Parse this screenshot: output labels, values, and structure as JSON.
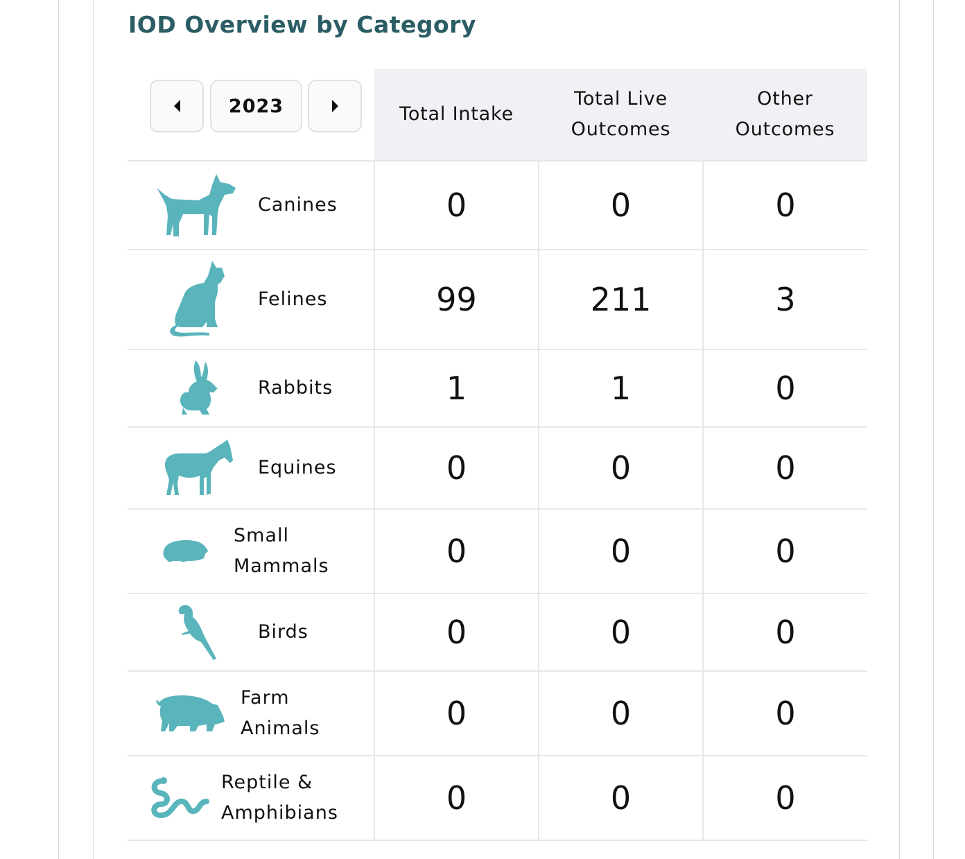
{
  "title": "IOD Overview by Category",
  "year_selector": {
    "year": "2023",
    "prev_icon": "caret-left-icon",
    "next_icon": "caret-right-icon"
  },
  "columns": [
    "Total Intake",
    "Total Live Outcomes",
    "Other Outcomes"
  ],
  "icon_color": "#5ab4bb",
  "rows": [
    {
      "label": "Canines",
      "icon": "dog-icon",
      "values": [
        "0",
        "0",
        "0"
      ]
    },
    {
      "label": "Felines",
      "icon": "cat-icon",
      "values": [
        "99",
        "211",
        "3"
      ]
    },
    {
      "label": "Rabbits",
      "icon": "rabbit-icon",
      "values": [
        "1",
        "1",
        "0"
      ]
    },
    {
      "label": "Equines",
      "icon": "horse-icon",
      "values": [
        "0",
        "0",
        "0"
      ]
    },
    {
      "label": "Small Mammals",
      "icon": "guinea-pig-icon",
      "values": [
        "0",
        "0",
        "0"
      ]
    },
    {
      "label": "Birds",
      "icon": "parrot-icon",
      "values": [
        "0",
        "0",
        "0"
      ]
    },
    {
      "label": "Farm Animals",
      "icon": "pig-icon",
      "values": [
        "0",
        "0",
        "0"
      ]
    },
    {
      "label": "Reptile & Amphibians",
      "icon": "snake-icon",
      "values": [
        "0",
        "0",
        "0"
      ]
    }
  ]
}
